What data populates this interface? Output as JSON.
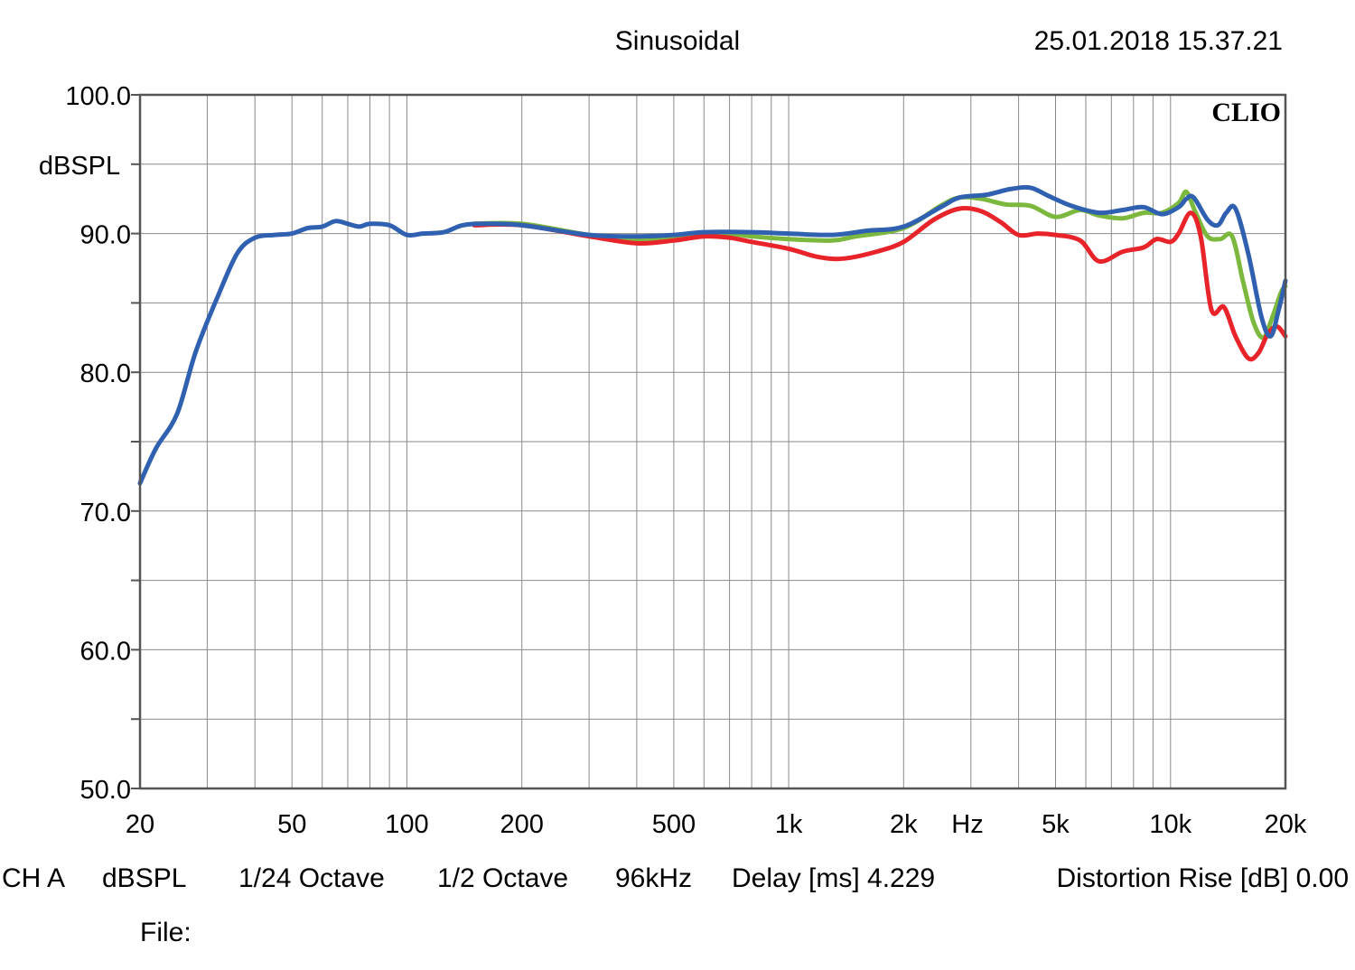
{
  "header": {
    "title": "Sinusoidal",
    "timestamp": "25.01.2018 15.37.21",
    "logo": "CLIO"
  },
  "footer": {
    "channel": "CH A",
    "unit": "dBSPL",
    "smoothing": "1/24 Octave",
    "octave": "1/2 Octave",
    "sample_rate": "96kHz",
    "delay": "Delay [ms] 4.229",
    "distortion": "Distortion Rise [dB] 0.00",
    "file_label": "File:"
  },
  "chart_data": {
    "type": "line",
    "x_scale": "log",
    "xlim": [
      20,
      20000
    ],
    "ylim": [
      50,
      100
    ],
    "ylabel": "dBSPL",
    "x_unit_label": "Hz",
    "grid": true,
    "legend": "none",
    "y_ticks": [
      {
        "value": 100,
        "label": "100.0"
      },
      {
        "value": 90,
        "label": "90.0"
      },
      {
        "value": 80,
        "label": "80.0"
      },
      {
        "value": 70,
        "label": "70.0"
      },
      {
        "value": 60,
        "label": "60.0"
      },
      {
        "value": 50,
        "label": "50.0"
      }
    ],
    "x_ticks": [
      {
        "value": 20,
        "label": "20"
      },
      {
        "value": 50,
        "label": "50"
      },
      {
        "value": 100,
        "label": "100"
      },
      {
        "value": 200,
        "label": "200"
      },
      {
        "value": 500,
        "label": "500"
      },
      {
        "value": 1000,
        "label": "1k"
      },
      {
        "value": 2000,
        "label": "2k"
      },
      {
        "value": 5000,
        "label": "5k"
      },
      {
        "value": 10000,
        "label": "10k"
      },
      {
        "value": 20000,
        "label": "20k"
      }
    ],
    "series": [
      {
        "color": "#7cb83d",
        "points": [
          [
            150,
            90.7
          ],
          [
            200,
            90.7
          ],
          [
            300,
            89.9
          ],
          [
            400,
            89.6
          ],
          [
            500,
            89.8
          ],
          [
            600,
            90.0
          ],
          [
            700,
            90.0
          ],
          [
            800,
            89.8
          ],
          [
            1000,
            89.6
          ],
          [
            1300,
            89.5
          ],
          [
            1500,
            89.8
          ],
          [
            2000,
            90.4
          ],
          [
            2500,
            92.0
          ],
          [
            2800,
            92.6
          ],
          [
            3200,
            92.5
          ],
          [
            3700,
            92.1
          ],
          [
            4300,
            92.0
          ],
          [
            5000,
            91.2
          ],
          [
            5800,
            91.7
          ],
          [
            6500,
            91.3
          ],
          [
            7500,
            91.1
          ],
          [
            8500,
            91.5
          ],
          [
            9500,
            91.5
          ],
          [
            10500,
            92.2
          ],
          [
            11000,
            93.0
          ],
          [
            11600,
            91.6
          ],
          [
            12500,
            89.8
          ],
          [
            13500,
            89.6
          ],
          [
            14500,
            89.8
          ],
          [
            15500,
            86.5
          ],
          [
            16500,
            83.6
          ],
          [
            17500,
            82.5
          ],
          [
            18500,
            84.0
          ],
          [
            19500,
            85.8
          ],
          [
            20000,
            86.2
          ]
        ]
      },
      {
        "color": "#e8232a",
        "points": [
          [
            150,
            90.6
          ],
          [
            200,
            90.6
          ],
          [
            300,
            89.8
          ],
          [
            400,
            89.3
          ],
          [
            500,
            89.5
          ],
          [
            600,
            89.8
          ],
          [
            700,
            89.7
          ],
          [
            800,
            89.4
          ],
          [
            1000,
            88.9
          ],
          [
            1200,
            88.3
          ],
          [
            1400,
            88.2
          ],
          [
            1700,
            88.7
          ],
          [
            2000,
            89.4
          ],
          [
            2400,
            91.0
          ],
          [
            2800,
            91.8
          ],
          [
            3200,
            91.6
          ],
          [
            3600,
            90.8
          ],
          [
            4000,
            89.9
          ],
          [
            4500,
            90.0
          ],
          [
            5000,
            89.9
          ],
          [
            5800,
            89.5
          ],
          [
            6500,
            88.0
          ],
          [
            7500,
            88.7
          ],
          [
            8500,
            89.0
          ],
          [
            9200,
            89.6
          ],
          [
            10000,
            89.4
          ],
          [
            10500,
            90.0
          ],
          [
            11300,
            91.5
          ],
          [
            12000,
            89.8
          ],
          [
            12800,
            84.5
          ],
          [
            13800,
            84.7
          ],
          [
            14800,
            82.6
          ],
          [
            16000,
            81.0
          ],
          [
            17000,
            81.4
          ],
          [
            18000,
            82.8
          ],
          [
            19000,
            83.3
          ],
          [
            20000,
            82.6
          ]
        ]
      },
      {
        "color": "#3060b0",
        "points": [
          [
            20,
            72.0
          ],
          [
            22,
            74.5
          ],
          [
            25,
            77.0
          ],
          [
            28,
            81.5
          ],
          [
            32,
            85.5
          ],
          [
            36,
            88.6
          ],
          [
            40,
            89.7
          ],
          [
            45,
            89.9
          ],
          [
            50,
            90.0
          ],
          [
            55,
            90.4
          ],
          [
            60,
            90.5
          ],
          [
            65,
            90.9
          ],
          [
            70,
            90.7
          ],
          [
            75,
            90.5
          ],
          [
            80,
            90.7
          ],
          [
            90,
            90.6
          ],
          [
            100,
            89.9
          ],
          [
            110,
            90.0
          ],
          [
            125,
            90.1
          ],
          [
            140,
            90.6
          ],
          [
            160,
            90.7
          ],
          [
            200,
            90.6
          ],
          [
            300,
            89.9
          ],
          [
            400,
            89.8
          ],
          [
            500,
            89.9
          ],
          [
            600,
            90.1
          ],
          [
            800,
            90.1
          ],
          [
            1000,
            90.0
          ],
          [
            1300,
            89.9
          ],
          [
            1600,
            90.2
          ],
          [
            2000,
            90.5
          ],
          [
            2500,
            91.9
          ],
          [
            2800,
            92.6
          ],
          [
            3300,
            92.8
          ],
          [
            3800,
            93.2
          ],
          [
            4300,
            93.3
          ],
          [
            4800,
            92.7
          ],
          [
            5500,
            92.0
          ],
          [
            6500,
            91.5
          ],
          [
            7500,
            91.7
          ],
          [
            8500,
            91.9
          ],
          [
            9500,
            91.4
          ],
          [
            10500,
            91.9
          ],
          [
            11000,
            92.5
          ],
          [
            11500,
            92.6
          ],
          [
            12500,
            91.0
          ],
          [
            13300,
            90.6
          ],
          [
            14000,
            91.5
          ],
          [
            14800,
            91.8
          ],
          [
            16000,
            88.5
          ],
          [
            17300,
            84.0
          ],
          [
            18300,
            82.6
          ],
          [
            19200,
            84.5
          ],
          [
            20000,
            86.6
          ]
        ]
      }
    ]
  }
}
